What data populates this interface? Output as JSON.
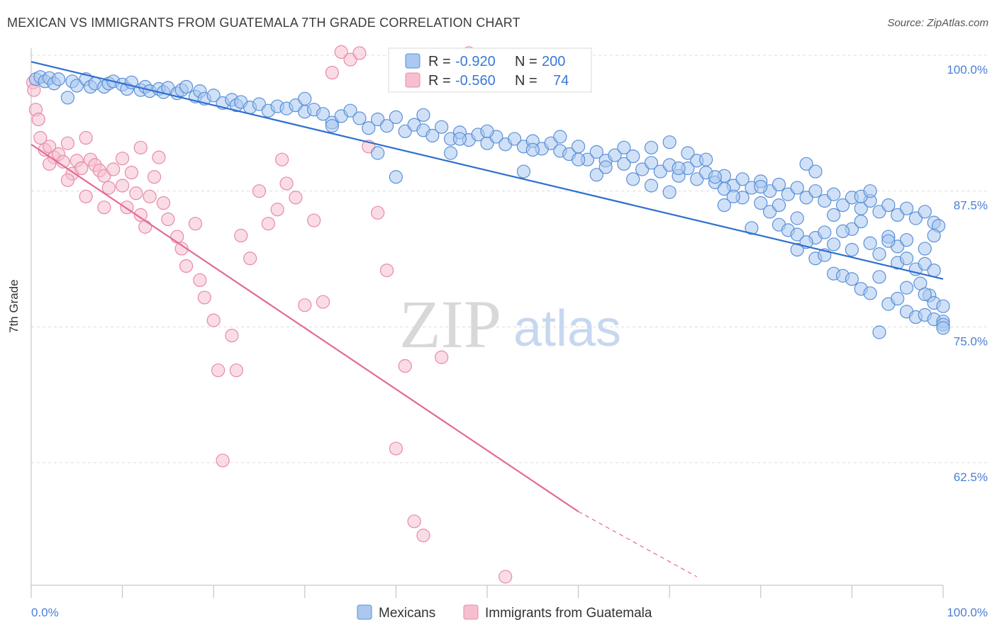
{
  "title": "MEXICAN VS IMMIGRANTS FROM GUATEMALA 7TH GRADE CORRELATION CHART",
  "source": "Source: ZipAtlas.com",
  "watermark": {
    "zip": "ZIP",
    "atlas": "atlas"
  },
  "colors": {
    "blue_fill": "#aac8f0",
    "blue_stroke": "#5b90d8",
    "blue_line": "#2f6fcf",
    "pink_fill": "#f6bfd0",
    "pink_stroke": "#e88aa8",
    "pink_line": "#e36a94",
    "axis_text": "#4a7fd4",
    "grid": "#dcdcdc"
  },
  "legend": {
    "entries": [
      {
        "r_label": "R =",
        "r_value": "-0.920",
        "n_label": "N =",
        "n_value": "200"
      },
      {
        "r_label": "R =",
        "r_value": "-0.560",
        "n_label": "N =",
        "n_value": "74"
      }
    ]
  },
  "bottom_legend": [
    "Mexicans",
    "Immigrants from Guatemala"
  ],
  "chart_data": {
    "type": "scatter",
    "title": "MEXICAN VS IMMIGRANTS FROM GUATEMALA 7TH GRADE CORRELATION CHART",
    "xlabel": "",
    "ylabel": "7th Grade",
    "xlim": [
      0,
      100
    ],
    "ylim": [
      52,
      101
    ],
    "x_tick_labels": [
      "0.0%",
      "100.0%"
    ],
    "y_ticks": [
      100,
      87.5,
      75,
      62.5
    ],
    "y_tick_labels": [
      "100.0%",
      "87.5%",
      "75.0%",
      "62.5%"
    ],
    "grid": true,
    "legend_position": "top-center",
    "series": [
      {
        "name": "Mexicans",
        "r": -0.92,
        "n": 200,
        "trend": {
          "x0": 0,
          "y0": 99.4,
          "x1": 100,
          "y1": 79.4
        },
        "points": [
          [
            0.5,
            97.8
          ],
          [
            1,
            98.0
          ],
          [
            1.5,
            97.6
          ],
          [
            2,
            97.9
          ],
          [
            2.5,
            97.4
          ],
          [
            3,
            97.8
          ],
          [
            4,
            96.1
          ],
          [
            4.5,
            97.6
          ],
          [
            5,
            97.2
          ],
          [
            6,
            97.8
          ],
          [
            6.5,
            97.1
          ],
          [
            7,
            97.4
          ],
          [
            8,
            97.1
          ],
          [
            8.5,
            97.4
          ],
          [
            9,
            97.6
          ],
          [
            10,
            97.3
          ],
          [
            10.5,
            96.9
          ],
          [
            11,
            97.5
          ],
          [
            12,
            96.8
          ],
          [
            12.5,
            97.1
          ],
          [
            13,
            96.7
          ],
          [
            14,
            96.9
          ],
          [
            14.5,
            96.6
          ],
          [
            15,
            97.0
          ],
          [
            16,
            96.5
          ],
          [
            16.5,
            96.8
          ],
          [
            17,
            97.1
          ],
          [
            18,
            96.2
          ],
          [
            18.5,
            96.7
          ],
          [
            19,
            96.0
          ],
          [
            20,
            96.3
          ],
          [
            21,
            95.6
          ],
          [
            22,
            95.9
          ],
          [
            22.5,
            95.4
          ],
          [
            23,
            95.7
          ],
          [
            24,
            95.2
          ],
          [
            25,
            95.5
          ],
          [
            26,
            94.9
          ],
          [
            27,
            95.3
          ],
          [
            28,
            95.1
          ],
          [
            29,
            95.4
          ],
          [
            30,
            94.8
          ],
          [
            31,
            95.0
          ],
          [
            32,
            94.6
          ],
          [
            33,
            93.8
          ],
          [
            34,
            94.4
          ],
          [
            35,
            94.9
          ],
          [
            36,
            94.2
          ],
          [
            37,
            93.3
          ],
          [
            38,
            94.1
          ],
          [
            39,
            93.5
          ],
          [
            40,
            94.3
          ],
          [
            41,
            93.0
          ],
          [
            42,
            93.6
          ],
          [
            43,
            93.1
          ],
          [
            44,
            92.6
          ],
          [
            45,
            93.4
          ],
          [
            46,
            92.3
          ],
          [
            47,
            92.9
          ],
          [
            48,
            92.2
          ],
          [
            49,
            92.7
          ],
          [
            50,
            91.9
          ],
          [
            51,
            92.5
          ],
          [
            52,
            91.8
          ],
          [
            53,
            92.3
          ],
          [
            54,
            91.6
          ],
          [
            55,
            92.1
          ],
          [
            56,
            91.4
          ],
          [
            57,
            91.9
          ],
          [
            58,
            91.2
          ],
          [
            59,
            90.9
          ],
          [
            60,
            91.6
          ],
          [
            61,
            90.4
          ],
          [
            62,
            91.1
          ],
          [
            63,
            90.3
          ],
          [
            64,
            90.8
          ],
          [
            65,
            90.0
          ],
          [
            66,
            90.7
          ],
          [
            67,
            89.5
          ],
          [
            68,
            90.1
          ],
          [
            69,
            89.3
          ],
          [
            70,
            89.9
          ],
          [
            71,
            88.9
          ],
          [
            72,
            89.6
          ],
          [
            73,
            88.6
          ],
          [
            74,
            89.2
          ],
          [
            75,
            88.3
          ],
          [
            76,
            88.9
          ],
          [
            77,
            88.0
          ],
          [
            78,
            88.6
          ],
          [
            79,
            87.8
          ],
          [
            80,
            88.4
          ],
          [
            81,
            87.5
          ],
          [
            82,
            88.1
          ],
          [
            83,
            87.2
          ],
          [
            84,
            87.8
          ],
          [
            85,
            86.9
          ],
          [
            86,
            87.5
          ],
          [
            87,
            86.6
          ],
          [
            88,
            87.2
          ],
          [
            89,
            86.2
          ],
          [
            90,
            86.9
          ],
          [
            91,
            85.9
          ],
          [
            92,
            86.6
          ],
          [
            93,
            85.6
          ],
          [
            94,
            86.2
          ],
          [
            95,
            85.3
          ],
          [
            96,
            85.9
          ],
          [
            97,
            85.0
          ],
          [
            98,
            85.6
          ],
          [
            99,
            84.6
          ],
          [
            99.5,
            84.3
          ],
          [
            30,
            96.0
          ],
          [
            38,
            91.0
          ],
          [
            40,
            88.8
          ],
          [
            46,
            91.0
          ],
          [
            50,
            93.0
          ],
          [
            54,
            89.3
          ],
          [
            58,
            92.5
          ],
          [
            62,
            89.0
          ],
          [
            65,
            91.5
          ],
          [
            68,
            88.0
          ],
          [
            70,
            92.0
          ],
          [
            72,
            91.0
          ],
          [
            73,
            90.3
          ],
          [
            75,
            88.8
          ],
          [
            76,
            87.7
          ],
          [
            78,
            86.9
          ],
          [
            80,
            86.4
          ],
          [
            82,
            84.4
          ],
          [
            84,
            85.0
          ],
          [
            85,
            90.0
          ],
          [
            86,
            89.3
          ],
          [
            88,
            85.3
          ],
          [
            90,
            84.0
          ],
          [
            91,
            87.0
          ],
          [
            92,
            87.5
          ],
          [
            94,
            83.3
          ],
          [
            95,
            82.4
          ],
          [
            96,
            83.0
          ],
          [
            98,
            82.2
          ],
          [
            99,
            83.4
          ],
          [
            33,
            93.5
          ],
          [
            43,
            94.5
          ],
          [
            47,
            92.3
          ],
          [
            55,
            91.3
          ],
          [
            60,
            90.4
          ],
          [
            63,
            89.7
          ],
          [
            66,
            88.6
          ],
          [
            68,
            91.5
          ],
          [
            70,
            87.4
          ],
          [
            71,
            89.6
          ],
          [
            74,
            90.4
          ],
          [
            76,
            86.2
          ],
          [
            77,
            87.0
          ],
          [
            79,
            84.1
          ],
          [
            80,
            87.9
          ],
          [
            81,
            85.6
          ],
          [
            82,
            86.2
          ],
          [
            83,
            83.9
          ],
          [
            84,
            83.5
          ],
          [
            86,
            83.2
          ],
          [
            87,
            83.7
          ],
          [
            88,
            82.6
          ],
          [
            89,
            83.8
          ],
          [
            90,
            82.1
          ],
          [
            91,
            84.7
          ],
          [
            92,
            82.7
          ],
          [
            93,
            81.7
          ],
          [
            93,
            79.6
          ],
          [
            94,
            82.9
          ],
          [
            95,
            80.9
          ],
          [
            96,
            81.3
          ],
          [
            97,
            80.3
          ],
          [
            97.5,
            79.0
          ],
          [
            98,
            80.8
          ],
          [
            98.5,
            77.9
          ],
          [
            99,
            80.2
          ],
          [
            99,
            77.2
          ],
          [
            100,
            76.9
          ],
          [
            96,
            76.4
          ],
          [
            93,
            74.5
          ],
          [
            94,
            77.1
          ],
          [
            95,
            77.6
          ],
          [
            97,
            75.9
          ],
          [
            98,
            76.1
          ],
          [
            99,
            75.7
          ],
          [
            100,
            75.5
          ],
          [
            96,
            78.6
          ],
          [
            98,
            78.0
          ],
          [
            84,
            82.1
          ],
          [
            85,
            82.8
          ],
          [
            86,
            81.3
          ],
          [
            87,
            81.6
          ],
          [
            88,
            79.9
          ],
          [
            89,
            79.7
          ],
          [
            90,
            79.4
          ],
          [
            91,
            78.5
          ],
          [
            92,
            78.1
          ],
          [
            100,
            75.2
          ],
          [
            100,
            74.9
          ]
        ]
      },
      {
        "name": "Immigrants from Guatemala",
        "r": -0.56,
        "n": 74,
        "trend": {
          "x0": 0,
          "y0": 91.8,
          "x1": 60,
          "y1": 58.0
        },
        "trend_dashed": {
          "x0": 60,
          "y0": 58.0,
          "x1": 73,
          "y1": 52.0
        },
        "points": [
          [
            0.2,
            97.5
          ],
          [
            0.3,
            96.8
          ],
          [
            0.5,
            95.0
          ],
          [
            0.8,
            94.1
          ],
          [
            1,
            92.4
          ],
          [
            1.5,
            91.3
          ],
          [
            2,
            91.6
          ],
          [
            2.5,
            90.6
          ],
          [
            3,
            90.9
          ],
          [
            3.5,
            90.2
          ],
          [
            4,
            91.9
          ],
          [
            4.5,
            89.1
          ],
          [
            5,
            90.3
          ],
          [
            5.5,
            89.6
          ],
          [
            6,
            92.4
          ],
          [
            6.5,
            90.4
          ],
          [
            7,
            89.9
          ],
          [
            7.5,
            89.4
          ],
          [
            8,
            88.9
          ],
          [
            8.5,
            87.8
          ],
          [
            9,
            89.5
          ],
          [
            10,
            88.0
          ],
          [
            10.5,
            86.0
          ],
          [
            11,
            89.2
          ],
          [
            11.5,
            87.3
          ],
          [
            12,
            85.3
          ],
          [
            12.5,
            84.2
          ],
          [
            13,
            87.0
          ],
          [
            13.5,
            88.8
          ],
          [
            14,
            90.6
          ],
          [
            14.5,
            86.4
          ],
          [
            15,
            84.9
          ],
          [
            16,
            83.3
          ],
          [
            16.5,
            82.2
          ],
          [
            17,
            80.6
          ],
          [
            18,
            84.5
          ],
          [
            18.5,
            79.3
          ],
          [
            19,
            77.7
          ],
          [
            20,
            75.6
          ],
          [
            20.5,
            71.0
          ],
          [
            21,
            62.7
          ],
          [
            22,
            74.2
          ],
          [
            22.5,
            71.0
          ],
          [
            23,
            83.4
          ],
          [
            24,
            81.3
          ],
          [
            25,
            87.5
          ],
          [
            26,
            84.5
          ],
          [
            27,
            85.8
          ],
          [
            27.5,
            90.4
          ],
          [
            28,
            88.2
          ],
          [
            29,
            86.9
          ],
          [
            30,
            77.0
          ],
          [
            31,
            84.8
          ],
          [
            32,
            77.3
          ],
          [
            33,
            98.4
          ],
          [
            34,
            100.3
          ],
          [
            35,
            99.6
          ],
          [
            36,
            100.2
          ],
          [
            37,
            91.6
          ],
          [
            38,
            85.5
          ],
          [
            39,
            80.2
          ],
          [
            40,
            63.8
          ],
          [
            41,
            71.4
          ],
          [
            42,
            57.1
          ],
          [
            43,
            55.8
          ],
          [
            45,
            72.2
          ],
          [
            48,
            100.2
          ],
          [
            52,
            52.0
          ],
          [
            2,
            90.0
          ],
          [
            4,
            88.5
          ],
          [
            6,
            87.0
          ],
          [
            8,
            86.0
          ],
          [
            10,
            90.5
          ],
          [
            12,
            91.5
          ]
        ]
      }
    ]
  }
}
